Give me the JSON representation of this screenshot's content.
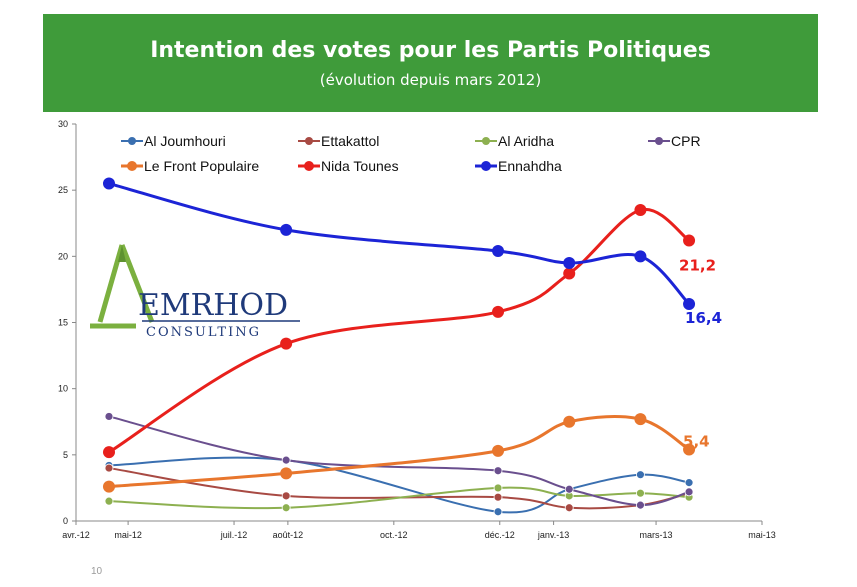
{
  "header": {
    "title": "Intention des votes pour les Partis Politiques",
    "subtitle": "(évolution depuis mars 2012)"
  },
  "logo": {
    "name": "EMRHOD",
    "tagline": "CONSULTING"
  },
  "page_number": "10",
  "chart_data": {
    "type": "line",
    "title": "",
    "xlabel": "",
    "ylabel": "",
    "x_axis": {
      "min": "2012-04-01",
      "max": "2013-05-01",
      "tick_values": [
        "2012-04-01",
        "2012-05-01",
        "2012-07-01",
        "2012-08-01",
        "2012-10-01",
        "2012-12-01",
        "2013-01-01",
        "2013-03-01",
        "2013-05-01"
      ],
      "tick_labels": [
        "avr.-12",
        "mai-12",
        "juil.-12",
        "août-12",
        "oct.-12",
        "déc.-12",
        "janv.-13",
        "mars-13",
        "mai-13"
      ]
    },
    "ylim": [
      0,
      30
    ],
    "yticks": [
      0,
      5,
      10,
      15,
      20,
      25,
      30
    ],
    "grid": false,
    "legend_position": "top",
    "series": [
      {
        "name": "Al Joumhouri",
        "color": "#3a6fb0",
        "x": [
          "2012-04-20",
          "2012-07-31",
          "2012-11-30",
          "2013-01-10",
          "2013-02-20",
          "2013-03-20"
        ],
        "y": [
          4.2,
          4.6,
          0.7,
          2.4,
          3.5,
          2.9
        ]
      },
      {
        "name": "Ettakattol",
        "color": "#a84a43",
        "x": [
          "2012-04-20",
          "2012-07-31",
          "2012-11-30",
          "2013-01-10",
          "2013-02-20",
          "2013-03-20"
        ],
        "y": [
          4.0,
          1.9,
          1.8,
          1.0,
          1.2,
          2.1
        ]
      },
      {
        "name": "Al Aridha",
        "color": "#8db050",
        "x": [
          "2012-04-20",
          "2012-07-31",
          "2012-11-30",
          "2013-01-10",
          "2013-02-20",
          "2013-03-20"
        ],
        "y": [
          1.5,
          1.0,
          2.5,
          1.9,
          2.1,
          1.8
        ]
      },
      {
        "name": "CPR",
        "color": "#6a4f8e",
        "x": [
          "2012-04-20",
          "2012-07-31",
          "2012-11-30",
          "2013-01-10",
          "2013-02-20",
          "2013-03-20"
        ],
        "y": [
          7.9,
          4.6,
          3.8,
          2.4,
          1.2,
          2.2
        ]
      },
      {
        "name": "Le Front Populaire",
        "color": "#e8762d",
        "x": [
          "2012-04-20",
          "2012-07-31",
          "2012-11-30",
          "2013-01-10",
          "2013-02-20",
          "2013-03-20"
        ],
        "y": [
          2.6,
          3.6,
          5.3,
          7.5,
          7.7,
          5.4
        ]
      },
      {
        "name": "Nida Tounes",
        "color": "#e8201c",
        "x": [
          "2012-04-20",
          "2012-07-31",
          "2012-11-30",
          "2013-01-10",
          "2013-02-20",
          "2013-03-20"
        ],
        "y": [
          5.2,
          13.4,
          15.8,
          18.7,
          23.5,
          21.2
        ]
      },
      {
        "name": "Ennahdha",
        "color": "#1c24d6",
        "x": [
          "2012-04-20",
          "2012-07-31",
          "2012-11-30",
          "2013-01-10",
          "2013-02-20",
          "2013-03-20"
        ],
        "y": [
          25.5,
          22.0,
          20.4,
          19.5,
          20.0,
          16.4
        ]
      }
    ],
    "annotations": [
      {
        "series": "Nida Tounes",
        "text": "21,2",
        "color": "#e8201c"
      },
      {
        "series": "Ennahdha",
        "text": "16,4",
        "color": "#1c24d6"
      },
      {
        "series": "Le Front Populaire",
        "text": "5,4",
        "color": "#e8762d"
      }
    ]
  }
}
